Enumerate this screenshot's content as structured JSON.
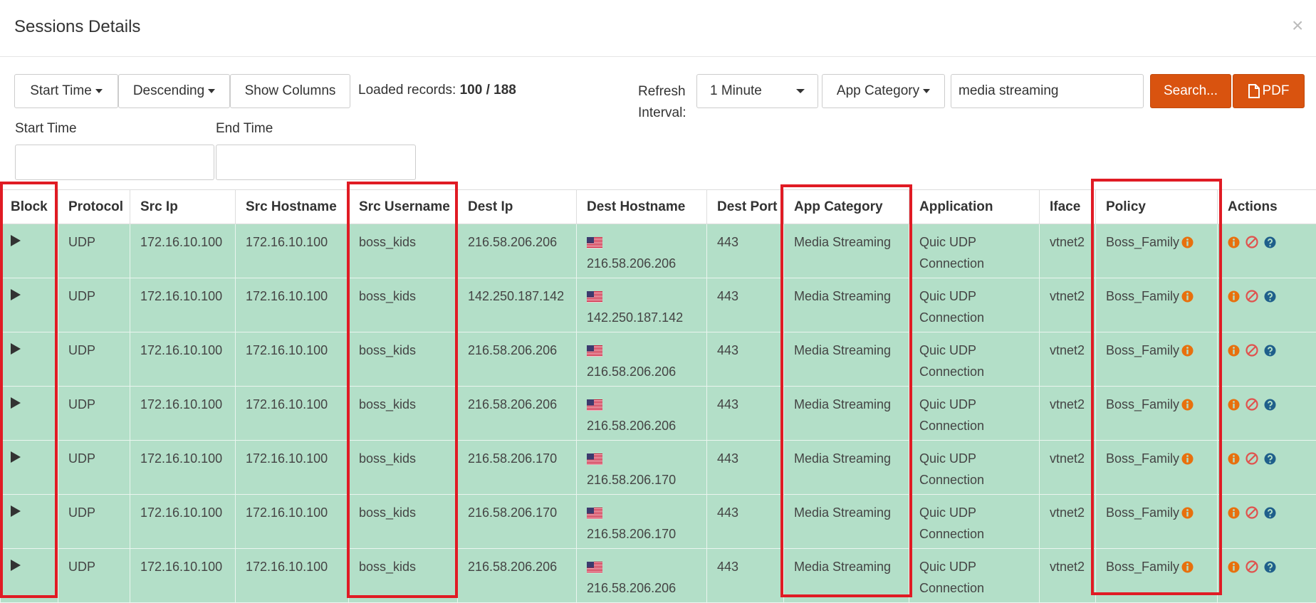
{
  "header": {
    "title": "Sessions Details",
    "close": "×"
  },
  "toolbar": {
    "sort_field": "Start Time",
    "sort_order": "Descending",
    "show_columns": "Show Columns",
    "loaded_label": "Loaded records:",
    "loaded_value": "100 / 188",
    "refresh_label": "Refresh Interval:",
    "refresh_value": "1 Minute",
    "category_filter": "App Category",
    "search_text": "media streaming",
    "search_button": "Search...",
    "pdf_button": "PDF"
  },
  "filters": {
    "start_label": "Start Time",
    "end_label": "End Time"
  },
  "table": {
    "columns": [
      "Block",
      "Protocol",
      "Src Ip",
      "Src Hostname",
      "Src Username",
      "Dest Ip",
      "Dest Hostname",
      "Dest Port",
      "App Category",
      "Application",
      "Iface",
      "Policy",
      "Actions"
    ],
    "rows": [
      [
        "UDP",
        "172.16.10.100",
        "172.16.10.100",
        "boss_kids",
        "216.58.206.206",
        "216.58.206.206",
        "443",
        "Media Streaming",
        "Quic UDP Connection",
        "vtnet2",
        "Boss_Family"
      ],
      [
        "UDP",
        "172.16.10.100",
        "172.16.10.100",
        "boss_kids",
        "142.250.187.142",
        "142.250.187.142",
        "443",
        "Media Streaming",
        "Quic UDP Connection",
        "vtnet2",
        "Boss_Family"
      ],
      [
        "UDP",
        "172.16.10.100",
        "172.16.10.100",
        "boss_kids",
        "216.58.206.206",
        "216.58.206.206",
        "443",
        "Media Streaming",
        "Quic UDP Connection",
        "vtnet2",
        "Boss_Family"
      ],
      [
        "UDP",
        "172.16.10.100",
        "172.16.10.100",
        "boss_kids",
        "216.58.206.206",
        "216.58.206.206",
        "443",
        "Media Streaming",
        "Quic UDP Connection",
        "vtnet2",
        "Boss_Family"
      ],
      [
        "UDP",
        "172.16.10.100",
        "172.16.10.100",
        "boss_kids",
        "216.58.206.170",
        "216.58.206.170",
        "443",
        "Media Streaming",
        "Quic UDP Connection",
        "vtnet2",
        "Boss_Family"
      ],
      [
        "UDP",
        "172.16.10.100",
        "172.16.10.100",
        "boss_kids",
        "216.58.206.170",
        "216.58.206.170",
        "443",
        "Media Streaming",
        "Quic UDP Connection",
        "vtnet2",
        "Boss_Family"
      ],
      [
        "UDP",
        "172.16.10.100",
        "172.16.10.100",
        "boss_kids",
        "216.58.206.206",
        "216.58.206.206",
        "443",
        "Media Streaming",
        "Quic UDP Connection",
        "vtnet2",
        "Boss_Family"
      ]
    ]
  }
}
